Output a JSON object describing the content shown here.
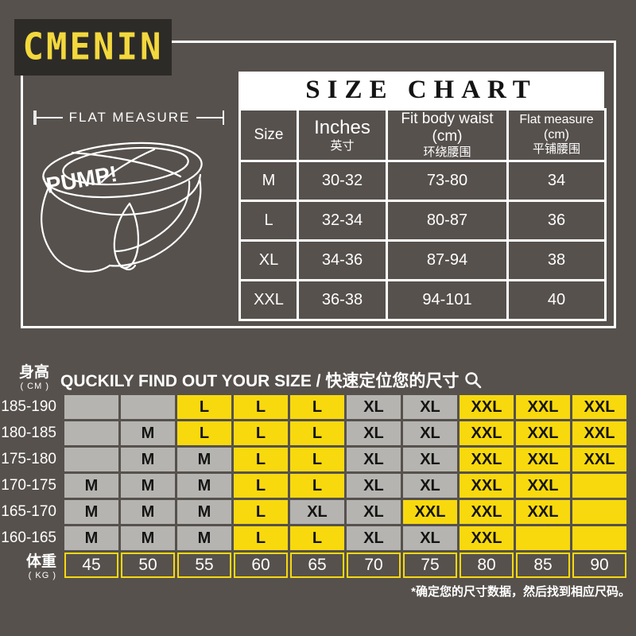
{
  "brand": {
    "logo_text": "CMENIN"
  },
  "top_panel": {
    "flat_measure_label": "FLAT MEASURE",
    "garment_brand": "PUMP!"
  },
  "size_chart": {
    "title": "SIZE CHART",
    "columns": [
      {
        "en": "Size",
        "zh": ""
      },
      {
        "en": "Inches",
        "zh": "英寸"
      },
      {
        "en": "Fit body waist (cm)",
        "zh": "环绕腰围"
      },
      {
        "en": "Flat measure (cm)",
        "zh": "平铺腰围"
      }
    ],
    "rows": [
      {
        "size": "M",
        "inches": "30-32",
        "fit_body_waist_cm": "73-80",
        "flat_measure_cm": "34"
      },
      {
        "size": "L",
        "inches": "32-34",
        "fit_body_waist_cm": "80-87",
        "flat_measure_cm": "36"
      },
      {
        "size": "XL",
        "inches": "34-36",
        "fit_body_waist_cm": "87-94",
        "flat_measure_cm": "38"
      },
      {
        "size": "XXL",
        "inches": "36-38",
        "fit_body_waist_cm": "94-101",
        "flat_measure_cm": "40"
      }
    ]
  },
  "size_finder": {
    "heading": "QUCKILY FIND OUT YOUR SIZE / 快速定位您的尺寸",
    "magnifier_icon": "magnifier-icon",
    "height_axis": {
      "label": "身高",
      "unit": "( CM )"
    },
    "weight_axis": {
      "label": "体重",
      "unit": "( KG )"
    },
    "weights_kg": [
      "45",
      "50",
      "55",
      "60",
      "65",
      "70",
      "75",
      "80",
      "85",
      "90"
    ],
    "rows": [
      {
        "height_cm": "185-190",
        "cells": [
          {
            "t": "",
            "c": "gray"
          },
          {
            "t": "",
            "c": "gray"
          },
          {
            "t": "L",
            "c": "yellow"
          },
          {
            "t": "L",
            "c": "yellow"
          },
          {
            "t": "L",
            "c": "yellow"
          },
          {
            "t": "XL",
            "c": "gray"
          },
          {
            "t": "XL",
            "c": "gray"
          },
          {
            "t": "XXL",
            "c": "yellow"
          },
          {
            "t": "XXL",
            "c": "yellow"
          },
          {
            "t": "XXL",
            "c": "yellow"
          }
        ]
      },
      {
        "height_cm": "180-185",
        "cells": [
          {
            "t": "",
            "c": "gray"
          },
          {
            "t": "M",
            "c": "gray"
          },
          {
            "t": "L",
            "c": "yellow"
          },
          {
            "t": "L",
            "c": "yellow"
          },
          {
            "t": "L",
            "c": "yellow"
          },
          {
            "t": "XL",
            "c": "gray"
          },
          {
            "t": "XL",
            "c": "gray"
          },
          {
            "t": "XXL",
            "c": "yellow"
          },
          {
            "t": "XXL",
            "c": "yellow"
          },
          {
            "t": "XXL",
            "c": "yellow"
          }
        ]
      },
      {
        "height_cm": "175-180",
        "cells": [
          {
            "t": "",
            "c": "gray"
          },
          {
            "t": "M",
            "c": "gray"
          },
          {
            "t": "M",
            "c": "gray"
          },
          {
            "t": "L",
            "c": "yellow"
          },
          {
            "t": "L",
            "c": "yellow"
          },
          {
            "t": "XL",
            "c": "gray"
          },
          {
            "t": "XL",
            "c": "gray"
          },
          {
            "t": "XXL",
            "c": "yellow"
          },
          {
            "t": "XXL",
            "c": "yellow"
          },
          {
            "t": "XXL",
            "c": "yellow"
          }
        ]
      },
      {
        "height_cm": "170-175",
        "cells": [
          {
            "t": "M",
            "c": "gray"
          },
          {
            "t": "M",
            "c": "gray"
          },
          {
            "t": "M",
            "c": "gray"
          },
          {
            "t": "L",
            "c": "yellow"
          },
          {
            "t": "L",
            "c": "yellow"
          },
          {
            "t": "XL",
            "c": "gray"
          },
          {
            "t": "XL",
            "c": "gray"
          },
          {
            "t": "XXL",
            "c": "yellow"
          },
          {
            "t": "XXL",
            "c": "yellow"
          },
          {
            "t": "",
            "c": "yellow"
          }
        ]
      },
      {
        "height_cm": "165-170",
        "cells": [
          {
            "t": "M",
            "c": "gray"
          },
          {
            "t": "M",
            "c": "gray"
          },
          {
            "t": "M",
            "c": "gray"
          },
          {
            "t": "L",
            "c": "yellow"
          },
          {
            "t": "XL",
            "c": "gray"
          },
          {
            "t": "XL",
            "c": "gray"
          },
          {
            "t": "XXL",
            "c": "yellow"
          },
          {
            "t": "XXL",
            "c": "yellow"
          },
          {
            "t": "XXL",
            "c": "yellow"
          },
          {
            "t": "",
            "c": "yellow"
          }
        ]
      },
      {
        "height_cm": "160-165",
        "cells": [
          {
            "t": "M",
            "c": "gray"
          },
          {
            "t": "M",
            "c": "gray"
          },
          {
            "t": "M",
            "c": "gray"
          },
          {
            "t": "L",
            "c": "yellow"
          },
          {
            "t": "L",
            "c": "yellow"
          },
          {
            "t": "XL",
            "c": "gray"
          },
          {
            "t": "XL",
            "c": "gray"
          },
          {
            "t": "XXL",
            "c": "yellow"
          },
          {
            "t": "",
            "c": "yellow"
          },
          {
            "t": "",
            "c": "yellow"
          }
        ]
      }
    ],
    "footnote": "*确定您的尺寸数据，然后找到相应尺码。"
  },
  "colors": {
    "background": "#56514d",
    "logo_bg": "#2d2b28",
    "brand_yellow": "#f3d83d",
    "cell_yellow": "#f8d90e",
    "cell_gray": "#b5b4b0",
    "white": "#ffffff"
  }
}
